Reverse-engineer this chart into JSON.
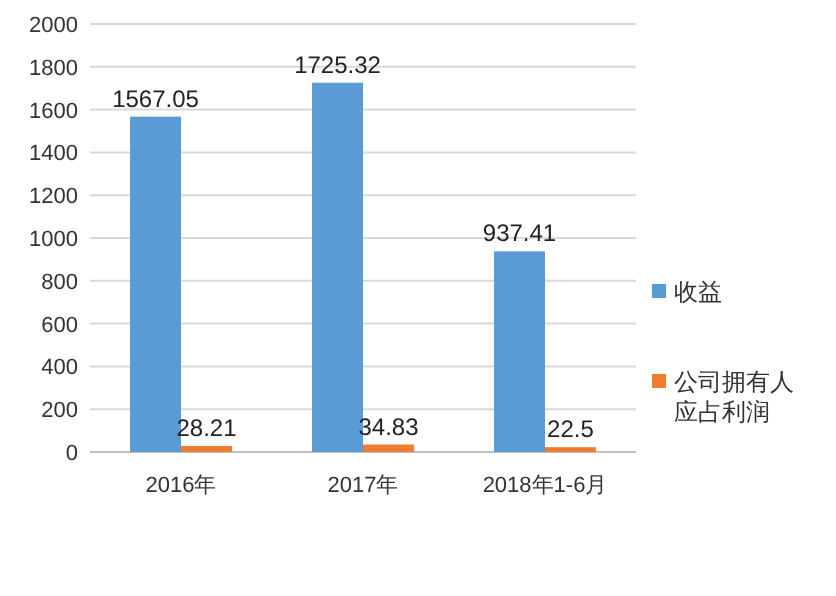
{
  "chart_data": {
    "type": "bar",
    "categories": [
      "2016年",
      "2017年",
      "2018年1-6月"
    ],
    "series": [
      {
        "name": "收益",
        "color": "#5b9bd5",
        "values": [
          1567.05,
          1725.32,
          937.41
        ]
      },
      {
        "name": "公司拥有人应占利润",
        "color": "#ed7d31",
        "values": [
          28.21,
          34.83,
          22.5
        ]
      }
    ],
    "ylim": [
      0,
      2000
    ],
    "yticks": [
      0,
      200,
      400,
      600,
      800,
      1000,
      1200,
      1400,
      1600,
      1800,
      2000
    ],
    "grid": "y",
    "legend": "right",
    "data_labels": true
  }
}
